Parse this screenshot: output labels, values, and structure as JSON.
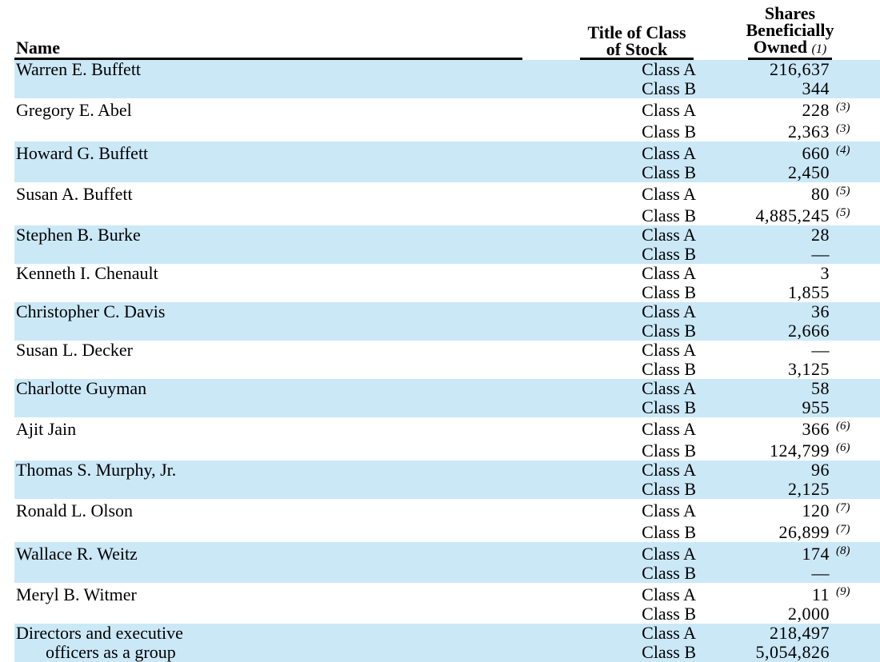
{
  "table": {
    "header": {
      "name_label": "Name",
      "class_title_line1": "Title of Class",
      "class_title_line2": "of Stock",
      "shares_title_line1": "Shares",
      "shares_title_line2": "Beneficially",
      "shares_title_line3": "Owned",
      "shares_footnote_ref": "(1)"
    },
    "class_a_label": "Class A",
    "class_b_label": "Class B",
    "row_highlight_color": "#cbe8f7",
    "rows": [
      {
        "name": "Warren E. Buffett",
        "class_a_shares": "216,637",
        "class_a_footnote": "",
        "class_b_shares": "344",
        "class_b_footnote": "",
        "shaded": true
      },
      {
        "name": "Gregory E. Abel",
        "class_a_shares": "228",
        "class_a_footnote": "(3)",
        "class_b_shares": "2,363",
        "class_b_footnote": "(3)",
        "shaded": false
      },
      {
        "name": "Howard G. Buffett",
        "class_a_shares": "660",
        "class_a_footnote": "(4)",
        "class_b_shares": "2,450",
        "class_b_footnote": "",
        "shaded": true
      },
      {
        "name": "Susan A. Buffett",
        "class_a_shares": "80",
        "class_a_footnote": "(5)",
        "class_b_shares": "4,885,245",
        "class_b_footnote": "(5)",
        "shaded": false
      },
      {
        "name": "Stephen B. Burke",
        "class_a_shares": "28",
        "class_a_footnote": "",
        "class_b_shares": "—",
        "class_b_footnote": "",
        "shaded": true
      },
      {
        "name": "Kenneth I. Chenault",
        "class_a_shares": "3",
        "class_a_footnote": "",
        "class_b_shares": "1,855",
        "class_b_footnote": "",
        "shaded": false
      },
      {
        "name": "Christopher C. Davis",
        "class_a_shares": "36",
        "class_a_footnote": "",
        "class_b_shares": "2,666",
        "class_b_footnote": "",
        "shaded": true
      },
      {
        "name": "Susan L. Decker",
        "class_a_shares": "—",
        "class_a_footnote": "",
        "class_b_shares": "3,125",
        "class_b_footnote": "",
        "shaded": false
      },
      {
        "name": "Charlotte Guyman",
        "class_a_shares": "58",
        "class_a_footnote": "",
        "class_b_shares": "955",
        "class_b_footnote": "",
        "shaded": true
      },
      {
        "name": "Ajit Jain",
        "class_a_shares": "366",
        "class_a_footnote": "(6)",
        "class_b_shares": "124,799",
        "class_b_footnote": "(6)",
        "shaded": false
      },
      {
        "name": "Thomas S. Murphy, Jr.",
        "class_a_shares": "96",
        "class_a_footnote": "",
        "class_b_shares": "2,125",
        "class_b_footnote": "",
        "shaded": true
      },
      {
        "name": "Ronald L. Olson",
        "class_a_shares": "120",
        "class_a_footnote": "(7)",
        "class_b_shares": "26,899",
        "class_b_footnote": "(7)",
        "shaded": false
      },
      {
        "name": "Wallace R. Weitz",
        "class_a_shares": "174",
        "class_a_footnote": "(8)",
        "class_b_shares": "—",
        "class_b_footnote": "",
        "shaded": true
      },
      {
        "name": "Meryl B. Witmer",
        "class_a_shares": "11",
        "class_a_footnote": "(9)",
        "class_b_shares": "2,000",
        "class_b_footnote": "",
        "shaded": false
      },
      {
        "name": "Directors and executive",
        "name_line2": "officers as a group",
        "class_a_shares": "218,497",
        "class_a_footnote": "",
        "class_b_shares": "5,054,826",
        "class_b_footnote": "",
        "shaded": true
      }
    ]
  }
}
